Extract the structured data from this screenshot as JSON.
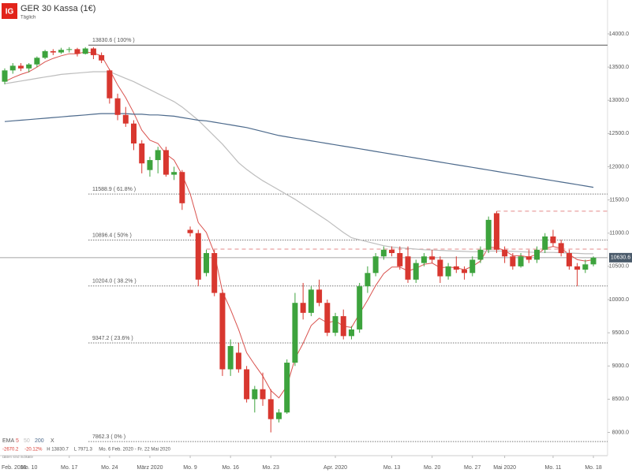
{
  "chart_data": {
    "type": "candlestick",
    "logo": "IG",
    "title": "GER 30 Kassa (1€)",
    "subtitle": "Täglich",
    "categories": [
      "Feb. 2020",
      null,
      null,
      "Mo. 10",
      null,
      null,
      null,
      null,
      "Mo. 17",
      null,
      null,
      null,
      null,
      "Mo. 24",
      null,
      null,
      null,
      null,
      "März 2020",
      null,
      null,
      null,
      null,
      "Mo. 9",
      null,
      null,
      null,
      null,
      "Mo. 16",
      null,
      null,
      null,
      null,
      "Mo. 23",
      null,
      null,
      null,
      null,
      null,
      null,
      null,
      "Apr. 2020",
      null,
      null,
      null,
      null,
      null,
      null,
      "Mo. 13",
      null,
      null,
      null,
      null,
      "Mo. 20",
      null,
      null,
      null,
      null,
      "Mo. 27",
      null,
      null,
      null,
      "Mai 2020",
      null,
      null,
      null,
      null,
      null,
      "Mo. 11",
      null,
      null,
      null,
      null,
      "Mo. 18"
    ],
    "open": [
      13280,
      13450,
      13520,
      13480,
      13540,
      13640,
      13740,
      13720,
      13760,
      13770,
      13700,
      13780,
      13680,
      13450,
      13030,
      12780,
      12650,
      12350,
      11950,
      12100,
      12250,
      11880,
      11920,
      11050,
      11000,
      10400,
      10700,
      10100,
      8950,
      9200,
      8950,
      8500,
      8650,
      8500,
      8200,
      8300,
      9050,
      9950,
      9800,
      10150,
      9950,
      9500,
      9750,
      9450,
      9550,
      10200,
      10400,
      10650,
      10750,
      10700,
      10650,
      10300,
      10550,
      10650,
      10600,
      10350,
      10500,
      10450,
      10400,
      10600,
      10750,
      11300,
      10750,
      10650,
      10500,
      10650,
      10600,
      10750,
      10950,
      10850,
      10700,
      10500,
      10450,
      10530
    ],
    "high": [
      13480,
      13560,
      13560,
      13560,
      13660,
      13760,
      13770,
      13790,
      13800,
      13790,
      13800,
      13800,
      13720,
      13470,
      13100,
      12900,
      12700,
      12400,
      12150,
      12300,
      12300,
      12000,
      11950,
      11100,
      11050,
      10750,
      10750,
      10150,
      9400,
      9350,
      9000,
      8700,
      8900,
      8650,
      8350,
      9100,
      10100,
      10250,
      10200,
      10300,
      10000,
      9800,
      9850,
      9600,
      10250,
      10500,
      10700,
      10800,
      10800,
      10800,
      10800,
      10600,
      10700,
      10750,
      10650,
      10550,
      10650,
      10500,
      10650,
      10800,
      11250,
      11330,
      10800,
      10700,
      10700,
      10750,
      10800,
      11000,
      11050,
      10900,
      10750,
      10550,
      10600,
      10650
    ],
    "low": [
      13240,
      13400,
      13440,
      13420,
      13500,
      13620,
      13680,
      13700,
      13720,
      13660,
      13690,
      13620,
      13560,
      12950,
      12700,
      12600,
      12250,
      11900,
      11850,
      11900,
      11850,
      11800,
      11350,
      10950,
      10200,
      10350,
      10050,
      8850,
      8850,
      8900,
      8450,
      8300,
      8400,
      8000,
      8150,
      8280,
      9000,
      9700,
      9750,
      9900,
      9450,
      9450,
      9400,
      9400,
      9500,
      10100,
      10350,
      10600,
      10650,
      10450,
      10250,
      10250,
      10500,
      10550,
      10250,
      10300,
      10400,
      10300,
      10350,
      10550,
      10700,
      10700,
      10550,
      10450,
      10480,
      10550,
      10550,
      10700,
      10800,
      10650,
      10450,
      10200,
      10400,
      10500
    ],
    "close": [
      13450,
      13520,
      13480,
      13540,
      13640,
      13740,
      13720,
      13760,
      13770,
      13700,
      13780,
      13680,
      13600,
      13030,
      12780,
      12650,
      12350,
      12050,
      12100,
      12250,
      11880,
      11920,
      11450,
      11000,
      10300,
      10700,
      10100,
      8950,
      9300,
      8950,
      8500,
      8650,
      8500,
      8200,
      8300,
      9050,
      9950,
      9800,
      10150,
      9950,
      9500,
      9750,
      9450,
      9550,
      10200,
      10400,
      10650,
      10750,
      10700,
      10500,
      10300,
      10550,
      10650,
      10600,
      10350,
      10500,
      10450,
      10400,
      10600,
      10750,
      11200,
      10750,
      10650,
      10500,
      10650,
      10600,
      10750,
      10950,
      10850,
      10700,
      10500,
      10450,
      10530,
      10630.6
    ],
    "up_color": "#3da33d",
    "down_color": "#d8372f",
    "legend_label": "EMA",
    "legend_close": "X",
    "series": [
      {
        "name": "5",
        "color": "#d9534f",
        "values": [
          13280,
          13340,
          13390,
          13430,
          13500,
          13580,
          13630,
          13670,
          13700,
          13700,
          13730,
          13710,
          13670,
          13460,
          13230,
          13040,
          12810,
          12550,
          12400,
          12350,
          12190,
          12100,
          11880,
          11590,
          11160,
          11010,
          10700,
          10120,
          9850,
          9550,
          9200,
          9020,
          8850,
          8630,
          8520,
          8700,
          9110,
          9340,
          9610,
          9720,
          9650,
          9680,
          9600,
          9580,
          9790,
          9990,
          10210,
          10390,
          10490,
          10490,
          10430,
          10470,
          10530,
          10550,
          10480,
          10490,
          10480,
          10450,
          10500,
          10580,
          10790,
          10780,
          10740,
          10660,
          10660,
          10640,
          10680,
          10770,
          10800,
          10770,
          10680,
          10600,
          10580,
          10600
        ]
      },
      {
        "name": "50",
        "color": "#bdbdbd",
        "values": [
          13250,
          13270,
          13290,
          13310,
          13330,
          13350,
          13370,
          13390,
          13400,
          13410,
          13420,
          13430,
          13430,
          13430,
          13380,
          13330,
          13280,
          13220,
          13160,
          13100,
          13040,
          12980,
          12900,
          12800,
          12700,
          12580,
          12460,
          12340,
          12200,
          12060,
          11960,
          11870,
          11790,
          11720,
          11650,
          11580,
          11510,
          11430,
          11350,
          11270,
          11190,
          11100,
          11010,
          10930,
          10900,
          10870,
          10840,
          10810,
          10790,
          10780,
          10770,
          10760,
          10750,
          10745,
          10740,
          10735,
          10730,
          10725,
          10720,
          10720,
          10730,
          10730,
          10730,
          10725,
          10720,
          10715,
          10710,
          10710,
          10710,
          10705,
          10700,
          10695,
          10690,
          10690
        ]
      },
      {
        "name": "200",
        "color": "#4d6a8c",
        "values": [
          12680,
          12690,
          12700,
          12710,
          12720,
          12730,
          12740,
          12750,
          12760,
          12770,
          12780,
          12790,
          12800,
          12800,
          12800,
          12800,
          12790,
          12790,
          12780,
          12780,
          12770,
          12760,
          12740,
          12720,
          12700,
          12690,
          12670,
          12650,
          12630,
          12610,
          12590,
          12560,
          12530,
          12500,
          12470,
          12450,
          12430,
          12410,
          12390,
          12370,
          12350,
          12330,
          12310,
          12290,
          12270,
          12250,
          12230,
          12210,
          12190,
          12170,
          12150,
          12130,
          12110,
          12090,
          12070,
          12050,
          12030,
          12010,
          11990,
          11970,
          11950,
          11930,
          11910,
          11890,
          11870,
          11850,
          11830,
          11810,
          11790,
          11770,
          11750,
          11730,
          11710,
          11690
        ]
      }
    ],
    "fib_levels": [
      {
        "value": 13830.6,
        "label": "13830.6 ( 100% )"
      },
      {
        "value": 11588.9,
        "label": "11588.9 ( 61.8% )"
      },
      {
        "value": 10896.4,
        "label": "10896.4 ( 50% )"
      },
      {
        "value": 10204.0,
        "label": "10204.0 ( 38.2% )"
      },
      {
        "value": 9347.2,
        "label": "9347.2 ( 23.6% )"
      },
      {
        "value": 7862.3,
        "label": "7862.3 ( 0% )"
      }
    ],
    "dashed_levels": [
      {
        "value": 10760,
        "start": 25
      },
      {
        "value": 11330,
        "start": 61
      }
    ],
    "current_price": {
      "value": 10630.6,
      "label": "10630.6"
    },
    "ylim": [
      7650,
      14510
    ],
    "yticks": [
      {
        "value": 8000,
        "label": "8000.0"
      },
      {
        "value": 8500,
        "label": "8500.0"
      },
      {
        "value": 9000,
        "label": "9000.0"
      },
      {
        "value": 9500,
        "label": "9500.0"
      },
      {
        "value": 10000,
        "label": "10000.0"
      },
      {
        "value": 10500,
        "label": "10500.0"
      },
      {
        "value": 11000,
        "label": "11000.0"
      },
      {
        "value": 11500,
        "label": "11500.0"
      },
      {
        "value": 12000,
        "label": "12000.0"
      },
      {
        "value": 12500,
        "label": "12500.0"
      },
      {
        "value": 13000,
        "label": "13000.0"
      },
      {
        "value": 13500,
        "label": "13500.0"
      },
      {
        "value": 14000,
        "label": "14000.0"
      }
    ],
    "info": [
      "-2670.2",
      "-20.12%",
      "H 13830.7",
      "L 7971.3",
      "Mo. 6 Feb. 2020 - Fr. 22 Mai 2020"
    ],
    "note": "Daten sind indikativ"
  }
}
